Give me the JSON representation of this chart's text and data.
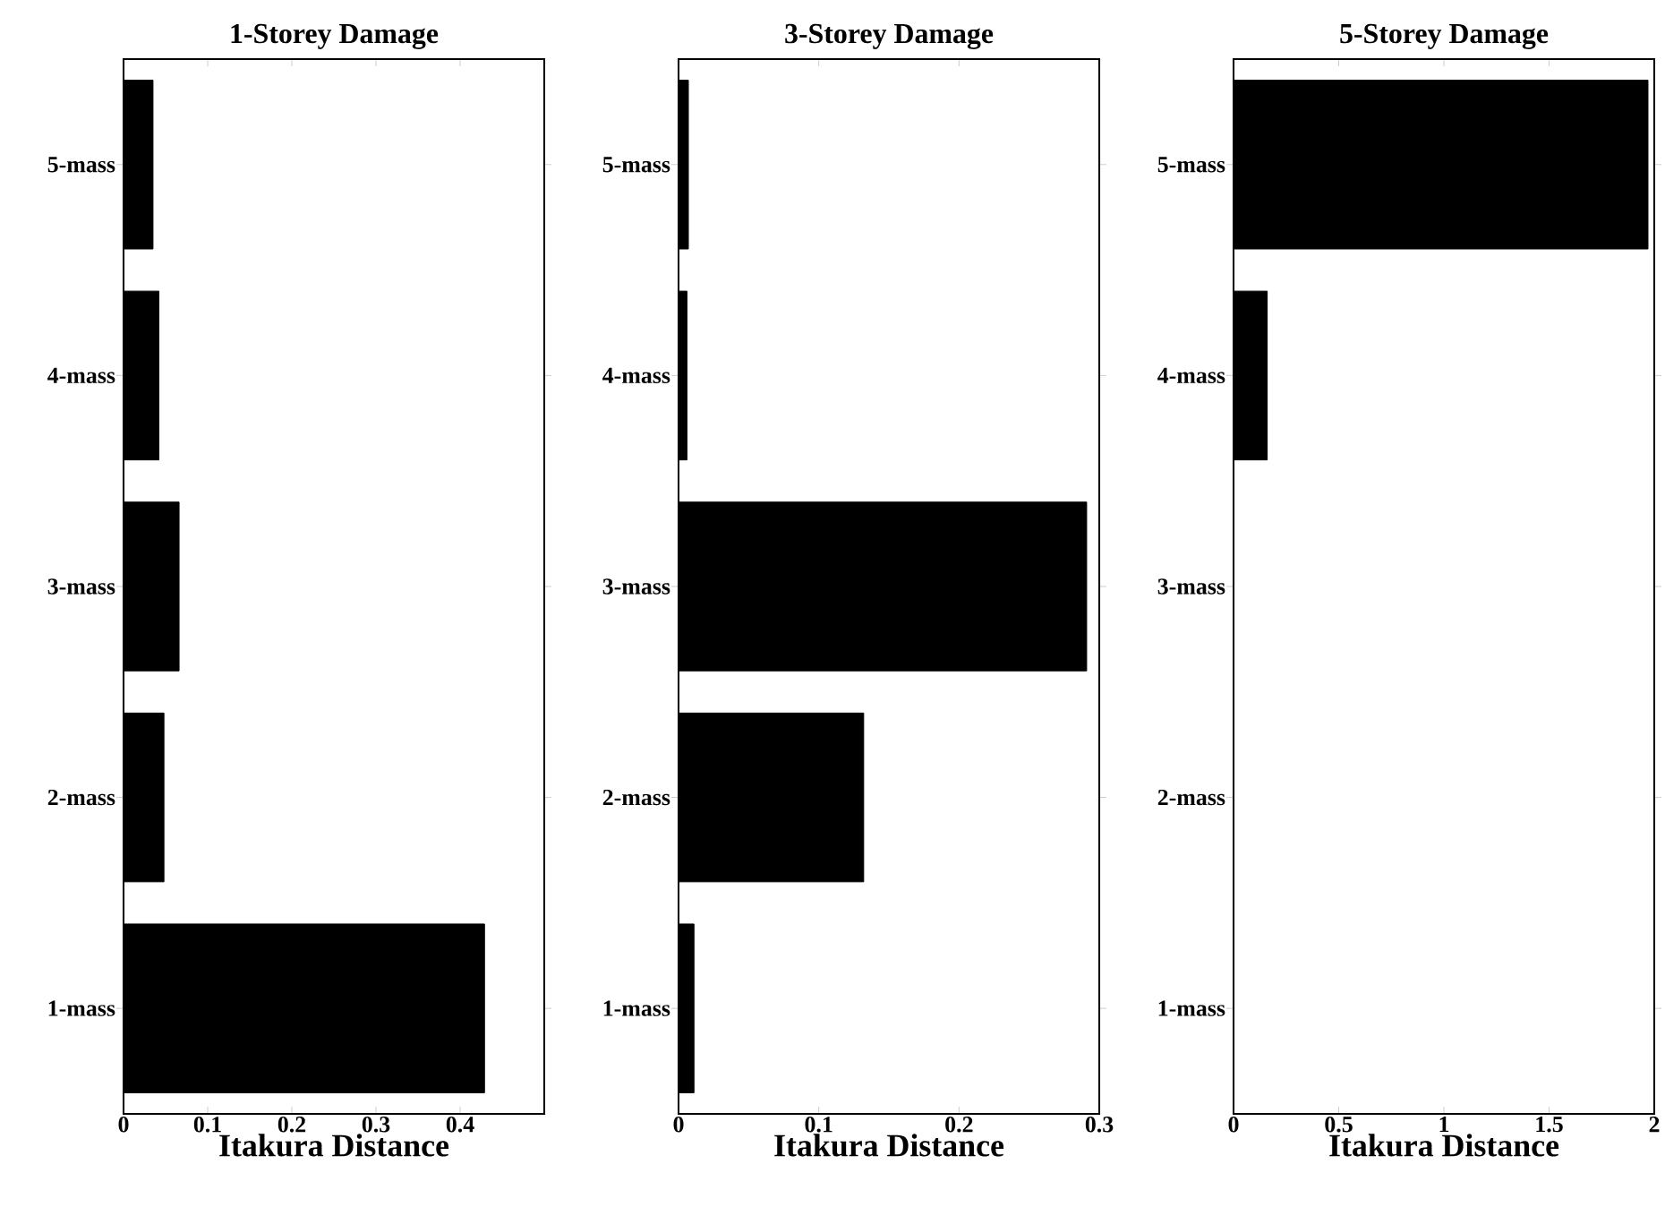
{
  "chart_data": [
    {
      "type": "bar",
      "orientation": "horizontal",
      "title": "1-Storey Damage",
      "xlabel": "Itakura Distance",
      "categories": [
        "5-mass",
        "4-mass",
        "3-mass",
        "2-mass",
        "1-mass"
      ],
      "values": [
        0.035,
        0.042,
        0.066,
        0.048,
        0.429
      ],
      "color": "#000000",
      "xlim": [
        0,
        0.5
      ],
      "xticks": [
        0,
        0.1,
        0.2,
        0.3,
        0.4
      ],
      "grid": false
    },
    {
      "type": "bar",
      "orientation": "horizontal",
      "title": "3-Storey Damage",
      "xlabel": "Itakura Distance",
      "categories": [
        "5-mass",
        "4-mass",
        "3-mass",
        "2-mass",
        "1-mass"
      ],
      "values": [
        0.007,
        0.006,
        0.291,
        0.132,
        0.011
      ],
      "color": "#000000",
      "xlim": [
        0,
        0.3
      ],
      "xticks": [
        0,
        0.1,
        0.2,
        0.3
      ],
      "grid": false
    },
    {
      "type": "bar",
      "orientation": "horizontal",
      "title": "5-Storey Damage",
      "xlabel": "Itakura Distance",
      "categories": [
        "5-mass",
        "4-mass",
        "3-mass",
        "2-mass",
        "1-mass"
      ],
      "values": [
        1.97,
        0.16,
        0,
        0,
        0
      ],
      "color": "#000000",
      "xlim": [
        0,
        2
      ],
      "xticks": [
        0,
        0.5,
        1,
        1.5,
        2
      ],
      "grid": false
    }
  ]
}
